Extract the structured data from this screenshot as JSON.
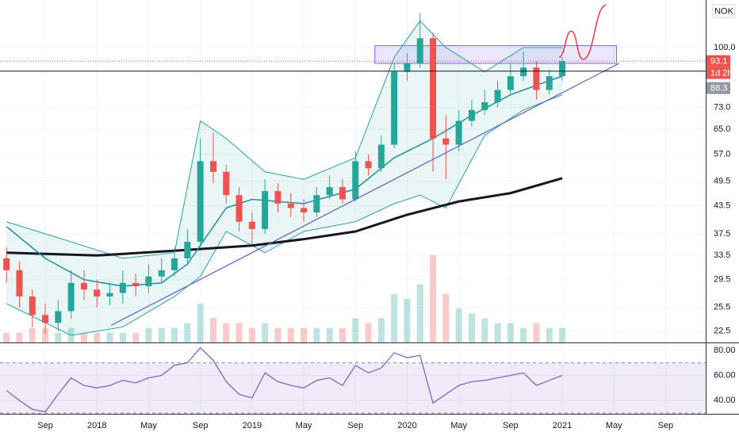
{
  "chart_data": [
    {
      "type": "candlestick",
      "currency": "NOK",
      "x": [
        -3,
        -2,
        -1,
        0,
        1,
        2,
        3,
        4,
        5,
        6,
        7,
        8,
        9,
        10,
        11,
        12,
        13,
        14,
        15,
        16,
        17,
        18,
        19,
        20,
        21,
        22,
        23,
        24,
        25,
        26,
        27,
        28,
        29,
        30,
        31,
        32,
        33,
        34,
        35,
        36,
        37,
        38,
        39,
        40
      ],
      "open": [
        33,
        31,
        27,
        24.5,
        23.5,
        25,
        29,
        28,
        27,
        27.5,
        29,
        28.5,
        30,
        31,
        33,
        36,
        55,
        52,
        46,
        40,
        38.5,
        47,
        44,
        43,
        42,
        46,
        48,
        45,
        55,
        53,
        60,
        88,
        92,
        105,
        62,
        60,
        68,
        72,
        75,
        80,
        86,
        90,
        80,
        86
      ],
      "high": [
        35,
        32.5,
        28,
        26,
        26.5,
        31,
        31,
        29.5,
        29,
        31,
        30.5,
        32,
        33,
        35,
        38.5,
        62,
        64,
        54,
        48,
        42,
        50,
        49,
        46.5,
        45,
        48,
        51,
        50,
        58,
        57,
        63,
        92,
        97,
        120,
        108,
        70,
        72,
        76,
        80,
        84,
        92,
        98,
        93,
        89,
        95
      ],
      "low": [
        29,
        25.5,
        23,
        22.2,
        22.5,
        24,
        26.5,
        25.5,
        25.8,
        26,
        27,
        27.5,
        29,
        30,
        32,
        35,
        49,
        44,
        38,
        35.5,
        37.5,
        42,
        41,
        40,
        41,
        45,
        44,
        44.5,
        51,
        52,
        59,
        84,
        90,
        52,
        50,
        58,
        66,
        70,
        73,
        78,
        84,
        76,
        78,
        84
      ],
      "close": [
        31,
        27,
        24.5,
        23.5,
        25,
        29,
        28,
        27,
        27.5,
        29,
        28.5,
        30,
        31,
        33,
        36,
        55,
        52,
        46,
        40,
        38.5,
        47,
        44,
        43,
        42,
        46,
        48,
        45,
        55,
        53,
        60,
        88,
        92,
        105,
        62,
        60,
        68,
        72,
        75,
        80,
        86,
        90,
        80,
        86,
        93.1
      ],
      "volume": [
        2,
        2,
        3,
        3,
        2,
        3,
        2,
        2,
        2,
        2,
        2,
        3,
        3,
        3,
        4,
        8,
        5,
        4,
        4,
        3,
        4,
        3,
        3,
        3,
        3,
        3,
        3,
        5,
        4,
        5,
        10,
        9,
        12,
        18,
        10,
        7,
        6,
        5,
        4,
        4,
        3,
        4,
        3,
        3
      ],
      "up_color": "#26a69a",
      "down_color": "#ef5350",
      "series": [
        {
          "color": "#131722",
          "emphasis": true,
          "x": [
            -3,
            4,
            11,
            16,
            20,
            24,
            28,
            32,
            36,
            40
          ],
          "values": [
            34,
            33.5,
            34.5,
            35.3,
            36.5,
            38,
            41.5,
            44.5,
            46.5,
            50.3
          ]
        },
        {
          "color": "#1e8fa0",
          "x": [
            -3,
            0,
            3,
            6,
            9,
            11,
            14,
            16,
            20,
            24,
            27,
            30,
            33,
            36,
            38,
            40
          ],
          "values": [
            39,
            33,
            29.5,
            28.5,
            29,
            32,
            43,
            45,
            44,
            47.5,
            56,
            62,
            70,
            78,
            82,
            86
          ]
        }
      ],
      "bands": {
        "color": "#26a69a",
        "x": [
          -3,
          2,
          6,
          10,
          12,
          14,
          17,
          20,
          24,
          27,
          29,
          31,
          34,
          37,
          40
        ],
        "upper": [
          40,
          36,
          33,
          34,
          68,
          62,
          52,
          50,
          56,
          95,
          115,
          100,
          88,
          100,
          100
        ],
        "lower": [
          26,
          22,
          23,
          27,
          30,
          38,
          34,
          38,
          40,
          44,
          46,
          43,
          63,
          72,
          78
        ]
      },
      "trendline": {
        "color": "#5b5fc7",
        "x": [
          5.1,
          44.4
        ],
        "values": [
          23.2,
          92
        ]
      },
      "zone": {
        "color": "#7b61ff",
        "x": [
          25.5,
          44.2
        ],
        "values": [
          92,
          101
        ]
      },
      "sketch": {
        "color": "#f23645",
        "x": [
          39.75,
          40.7,
          41.6,
          43.4
        ],
        "values": [
          95,
          109,
          94,
          125
        ]
      },
      "last_price": {
        "value": 93.1,
        "color": "#ef5350",
        "countdown": "1d 2h"
      },
      "hline": {
        "value": 88.3,
        "color": "#131722",
        "label_color": "#9598a1"
      },
      "xlim": [
        -3.5,
        51.1
      ],
      "ylim": [
        21.2,
        128.4
      ],
      "log": true,
      "grid": true,
      "yticks": [
        {
          "value": 100,
          "label": "100.0"
        },
        {
          "value": 73,
          "label": "73.0"
        },
        {
          "value": 65,
          "label": "65.0"
        },
        {
          "value": 57,
          "label": "57.0"
        },
        49.5,
        43.5,
        37.5,
        33.5,
        29.5,
        25.5,
        22.5
      ],
      "xticks": [
        {
          "value": 0,
          "label": "Sep"
        },
        {
          "value": 4,
          "label": "2018"
        },
        {
          "value": 8,
          "label": "May"
        },
        {
          "value": 12,
          "label": "Sep"
        },
        {
          "value": 16,
          "label": "2019"
        },
        {
          "value": 20,
          "label": "May"
        },
        {
          "value": 24,
          "label": "Sep"
        },
        {
          "value": 28,
          "label": "2020"
        },
        {
          "value": 32,
          "label": "May"
        },
        {
          "value": 36,
          "label": "Sep"
        },
        {
          "value": 40,
          "label": "2021"
        },
        {
          "value": 44,
          "label": "May"
        },
        {
          "value": 48,
          "label": "Sep"
        }
      ]
    },
    {
      "type": "line",
      "color": "#7e57c2",
      "values": [
        48,
        40,
        33,
        31,
        45,
        58,
        52,
        50,
        52,
        56,
        54,
        58,
        60,
        68,
        70,
        82,
        72,
        55,
        45,
        42,
        62,
        55,
        52,
        50,
        56,
        58,
        52,
        68,
        62,
        66,
        78,
        74,
        76,
        38,
        45,
        52,
        55,
        56,
        58,
        60,
        62,
        52,
        56,
        60
      ],
      "ylim": [
        29.4,
        85.6
      ],
      "bands": [
        30,
        70
      ],
      "band_color": "#7e57c2",
      "yticks": [
        {
          "value": 80,
          "label": "80.00"
        },
        {
          "value": 60,
          "label": "60.00"
        },
        {
          "value": 40,
          "label": "40.00"
        }
      ]
    }
  ]
}
